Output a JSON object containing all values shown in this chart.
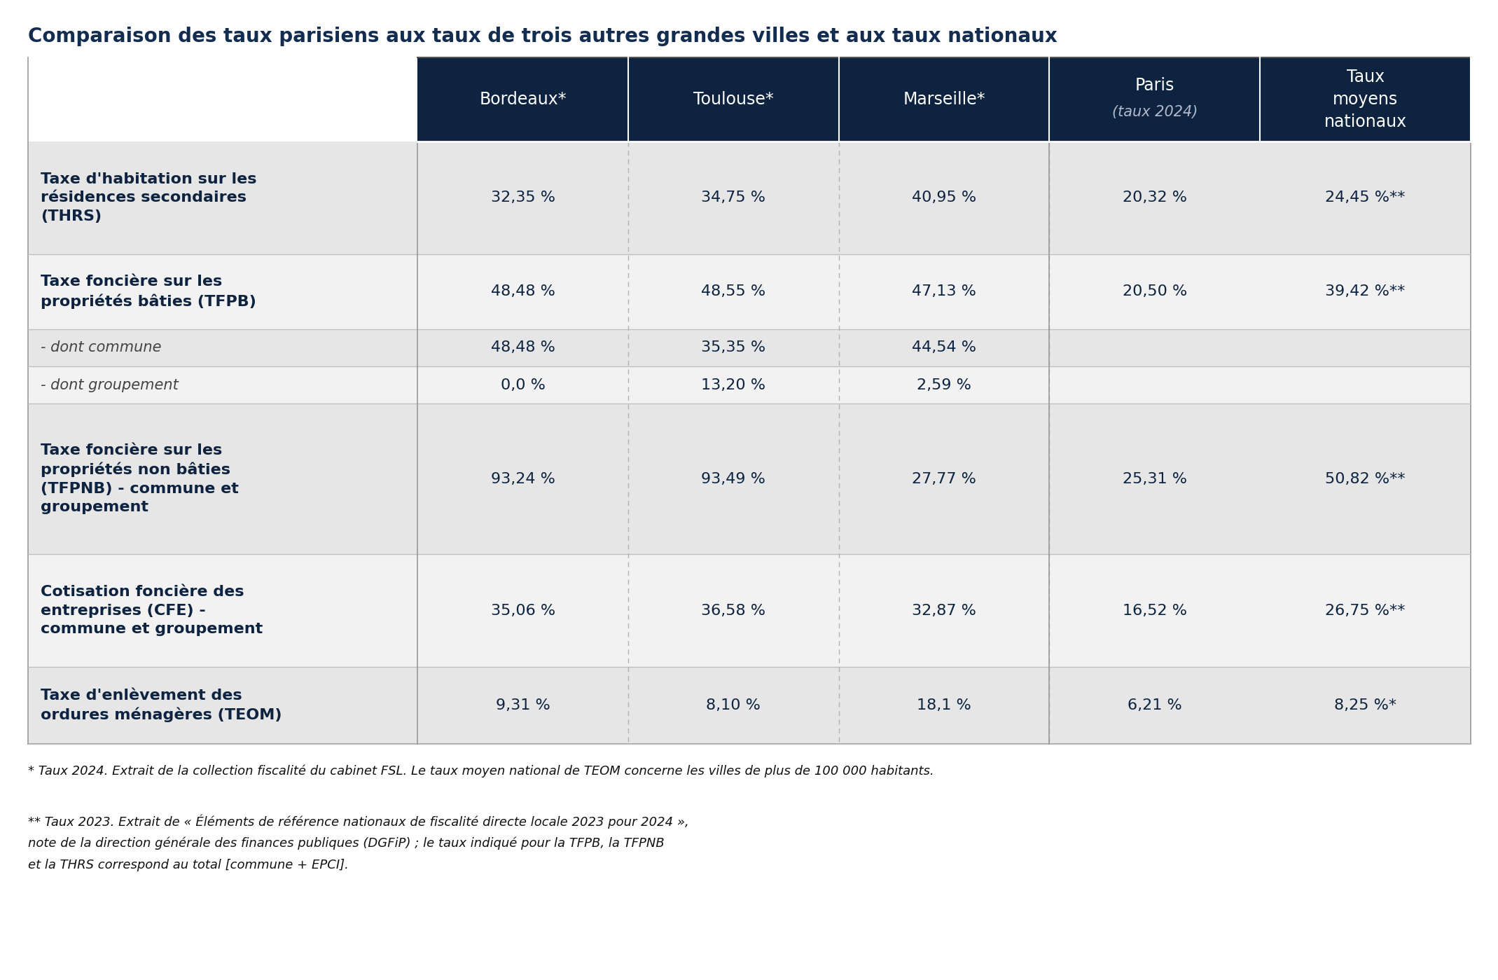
{
  "title": "Comparaison des taux parisiens aux taux de trois autres grandes villes et aux taux nationaux",
  "title_color": "#132d50",
  "header_bg": "#0d2340",
  "header_text_color": "#ffffff",
  "header_italic_color": "#b0b8cc",
  "text_color_dark": "#0d2340",
  "columns": [
    "Bordeaux*",
    "Toulouse*",
    "Marseille*",
    "Paris\n(taux 2024)",
    "Taux\nmoyens\nnationaux"
  ],
  "rows": [
    {
      "label": "Taxe d'habitation sur les\nrésidences secondaires\n(THRS)",
      "bold": true,
      "italic": false,
      "values": [
        "32,35 %",
        "34,75 %",
        "40,95 %",
        "20,32 %",
        "24,45 %**"
      ],
      "bg": "#e6e6e6"
    },
    {
      "label": "Taxe foncière sur les\npropriétés bâties (TFPB)",
      "bold": true,
      "italic": false,
      "values": [
        "48,48 %",
        "48,55 %",
        "47,13 %",
        "20,50 %",
        "39,42 %**"
      ],
      "bg": "#f2f2f2"
    },
    {
      "label": "- dont commune",
      "bold": false,
      "italic": true,
      "values": [
        "48,48 %",
        "35,35 %",
        "44,54 %",
        "",
        ""
      ],
      "bg": "#e6e6e6"
    },
    {
      "label": "- dont groupement",
      "bold": false,
      "italic": true,
      "values": [
        "0,0 %",
        "13,20 %",
        "2,59 %",
        "",
        ""
      ],
      "bg": "#f2f2f2"
    },
    {
      "label": "Taxe foncière sur les\npropriétés non bâties\n(TFPNB) - commune et\ngroupement",
      "bold": true,
      "italic": false,
      "values": [
        "93,24 %",
        "93,49 %",
        "27,77 %",
        "25,31 %",
        "50,82 %**"
      ],
      "bg": "#e6e6e6"
    },
    {
      "label": "Cotisation foncière des\nentreprises (CFE) -\ncommune et groupement",
      "bold": true,
      "italic": false,
      "values": [
        "35,06 %",
        "36,58 %",
        "32,87 %",
        "16,52 %",
        "26,75 %**"
      ],
      "bg": "#f2f2f2"
    },
    {
      "label": "Taxe d'enlèvement des\nordures ménagères (TEOM)",
      "bold": true,
      "italic": false,
      "values": [
        "9,31 %",
        "8,10 %",
        "18,1 %",
        "6,21 %",
        "8,25 %*"
      ],
      "bg": "#e6e6e6"
    }
  ],
  "footnote1": "* Taux 2024. Extrait de la collection fiscalité du cabinet FSL. Le taux moyen national de TEOM concerne les villes de plus de 100 000 habitants.",
  "footnote2": "** Taux 2023. Extrait de « Éléments de référence nationaux de fiscalité directe locale 2023 pour 2024 »,",
  "footnote3": "note de la direction générale des finances publiques (DGFiP) ; le taux indiqué pour la TFPB, la TFPNB",
  "footnote4": "et la THRS correspond au total [commune + EPCI]."
}
